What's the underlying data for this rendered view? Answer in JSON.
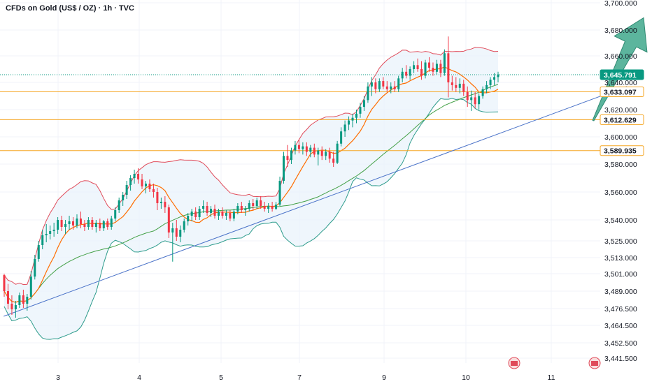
{
  "chart_data": {
    "type": "candlestick",
    "title": "CFDs on Gold (US$ / OZ) · 1h · TVC",
    "y_ticks": [
      "3,700.000",
      "3,680.000",
      "3,660.000",
      "3,640.000",
      "3,620.000",
      "3,600.000",
      "3,580.000",
      "3,560.000",
      "3,540.000",
      "3,525.000",
      "3,513.000",
      "3,501.000",
      "3,489.000",
      "3,476.500",
      "3,464.500",
      "3,452.500",
      "3,441.500"
    ],
    "x_ticks": [
      "3",
      "4",
      "5",
      "7",
      "9",
      "10",
      "11"
    ],
    "ylim": [
      3441.5,
      3700
    ],
    "price_tags": [
      {
        "label": "3,645.791",
        "value": 3645.8,
        "bg": "#089981",
        "fg": "#ffffff",
        "border": "#089981",
        "line": "dotted"
      },
      {
        "label": "3,633.097",
        "value": 3633.1,
        "bg": "#ffffff",
        "fg": "#131722",
        "border": "#f5a623",
        "line": "solid"
      },
      {
        "label": "3,612.629",
        "value": 3612.6,
        "bg": "#ffffff",
        "fg": "#131722",
        "border": "#f5a623",
        "line": "solid"
      },
      {
        "label": "3,589.935",
        "value": 3589.9,
        "bg": "#ffffff",
        "fg": "#131722",
        "border": "#f5a623",
        "line": "solid"
      }
    ],
    "colors": {
      "up": "#089981",
      "down": "#f23645",
      "bb_upper": "#e04b5a",
      "bb_lower": "#2e9c8c",
      "bb_fill": "#e8f2fb",
      "ma_fast": "#ff6d00",
      "ma_slow": "#43a047",
      "trendline": "#4a72c8",
      "arrow": "#3fa88c",
      "level": "#f5a623"
    },
    "trendline": {
      "from": {
        "day": 2.33,
        "value": 3471
      },
      "to": {
        "day": 11.9,
        "value": 3637
      }
    },
    "forecast_arrow": {
      "from": {
        "day": 11.5,
        "value": 3612
      },
      "to": {
        "day": 12.1,
        "value": 3689
      }
    },
    "candles": [
      {
        "o": 3500,
        "h": 3501,
        "l": 3485,
        "c": 3489
      },
      {
        "o": 3489,
        "h": 3494,
        "l": 3476,
        "c": 3480
      },
      {
        "o": 3480,
        "h": 3486,
        "l": 3472,
        "c": 3476
      },
      {
        "o": 3476,
        "h": 3482,
        "l": 3470,
        "c": 3479
      },
      {
        "o": 3479,
        "h": 3488,
        "l": 3477,
        "c": 3486
      },
      {
        "o": 3486,
        "h": 3490,
        "l": 3477,
        "c": 3480
      },
      {
        "o": 3480,
        "h": 3487,
        "l": 3475,
        "c": 3485
      },
      {
        "o": 3485,
        "h": 3503,
        "l": 3483,
        "c": 3499
      },
      {
        "o": 3499,
        "h": 3515,
        "l": 3497,
        "c": 3512
      },
      {
        "o": 3512,
        "h": 3525,
        "l": 3510,
        "c": 3522
      },
      {
        "o": 3522,
        "h": 3533,
        "l": 3519,
        "c": 3529
      },
      {
        "o": 3529,
        "h": 3537,
        "l": 3524,
        "c": 3530
      },
      {
        "o": 3530,
        "h": 3536,
        "l": 3526,
        "c": 3532
      },
      {
        "o": 3532,
        "h": 3538,
        "l": 3528,
        "c": 3533
      },
      {
        "o": 3533,
        "h": 3542,
        "l": 3530,
        "c": 3540
      },
      {
        "o": 3540,
        "h": 3543,
        "l": 3532,
        "c": 3535
      },
      {
        "o": 3535,
        "h": 3540,
        "l": 3530,
        "c": 3537
      },
      {
        "o": 3537,
        "h": 3543,
        "l": 3533,
        "c": 3539
      },
      {
        "o": 3539,
        "h": 3542,
        "l": 3533,
        "c": 3536
      },
      {
        "o": 3536,
        "h": 3544,
        "l": 3534,
        "c": 3541
      },
      {
        "o": 3541,
        "h": 3546,
        "l": 3534,
        "c": 3537
      },
      {
        "o": 3537,
        "h": 3540,
        "l": 3532,
        "c": 3535
      },
      {
        "o": 3535,
        "h": 3542,
        "l": 3533,
        "c": 3540
      },
      {
        "o": 3540,
        "h": 3542,
        "l": 3533,
        "c": 3535
      },
      {
        "o": 3535,
        "h": 3540,
        "l": 3531,
        "c": 3538
      },
      {
        "o": 3538,
        "h": 3541,
        "l": 3532,
        "c": 3534
      },
      {
        "o": 3534,
        "h": 3540,
        "l": 3532,
        "c": 3539
      },
      {
        "o": 3539,
        "h": 3541,
        "l": 3533,
        "c": 3535
      },
      {
        "o": 3535,
        "h": 3543,
        "l": 3533,
        "c": 3541
      },
      {
        "o": 3541,
        "h": 3549,
        "l": 3539,
        "c": 3547
      },
      {
        "o": 3547,
        "h": 3556,
        "l": 3545,
        "c": 3554
      },
      {
        "o": 3554,
        "h": 3560,
        "l": 3550,
        "c": 3558
      },
      {
        "o": 3558,
        "h": 3568,
        "l": 3555,
        "c": 3565
      },
      {
        "o": 3565,
        "h": 3572,
        "l": 3561,
        "c": 3570
      },
      {
        "o": 3570,
        "h": 3576,
        "l": 3566,
        "c": 3573
      },
      {
        "o": 3573,
        "h": 3577,
        "l": 3566,
        "c": 3569
      },
      {
        "o": 3569,
        "h": 3573,
        "l": 3562,
        "c": 3564
      },
      {
        "o": 3564,
        "h": 3568,
        "l": 3559,
        "c": 3566
      },
      {
        "o": 3566,
        "h": 3569,
        "l": 3560,
        "c": 3562
      },
      {
        "o": 3562,
        "h": 3566,
        "l": 3556,
        "c": 3560
      },
      {
        "o": 3560,
        "h": 3563,
        "l": 3547,
        "c": 3552
      },
      {
        "o": 3552,
        "h": 3556,
        "l": 3548,
        "c": 3553
      },
      {
        "o": 3553,
        "h": 3557,
        "l": 3545,
        "c": 3549
      },
      {
        "o": 3549,
        "h": 3551,
        "l": 3527,
        "c": 3531
      },
      {
        "o": 3531,
        "h": 3538,
        "l": 3510,
        "c": 3534
      },
      {
        "o": 3534,
        "h": 3540,
        "l": 3525,
        "c": 3528
      },
      {
        "o": 3528,
        "h": 3536,
        "l": 3524,
        "c": 3533
      },
      {
        "o": 3533,
        "h": 3541,
        "l": 3531,
        "c": 3539
      },
      {
        "o": 3539,
        "h": 3545,
        "l": 3536,
        "c": 3543
      },
      {
        "o": 3543,
        "h": 3548,
        "l": 3539,
        "c": 3546
      },
      {
        "o": 3546,
        "h": 3549,
        "l": 3540,
        "c": 3542
      },
      {
        "o": 3542,
        "h": 3550,
        "l": 3540,
        "c": 3548
      },
      {
        "o": 3548,
        "h": 3554,
        "l": 3545,
        "c": 3550
      },
      {
        "o": 3550,
        "h": 3553,
        "l": 3543,
        "c": 3545
      },
      {
        "o": 3545,
        "h": 3550,
        "l": 3542,
        "c": 3548
      },
      {
        "o": 3548,
        "h": 3551,
        "l": 3541,
        "c": 3543
      },
      {
        "o": 3543,
        "h": 3548,
        "l": 3540,
        "c": 3546
      },
      {
        "o": 3546,
        "h": 3549,
        "l": 3541,
        "c": 3543
      },
      {
        "o": 3543,
        "h": 3547,
        "l": 3540,
        "c": 3545
      },
      {
        "o": 3545,
        "h": 3547,
        "l": 3539,
        "c": 3541
      },
      {
        "o": 3541,
        "h": 3548,
        "l": 3539,
        "c": 3546
      },
      {
        "o": 3546,
        "h": 3552,
        "l": 3544,
        "c": 3550
      },
      {
        "o": 3550,
        "h": 3553,
        "l": 3545,
        "c": 3547
      },
      {
        "o": 3547,
        "h": 3550,
        "l": 3543,
        "c": 3548
      },
      {
        "o": 3548,
        "h": 3554,
        "l": 3546,
        "c": 3552
      },
      {
        "o": 3552,
        "h": 3555,
        "l": 3547,
        "c": 3550
      },
      {
        "o": 3550,
        "h": 3556,
        "l": 3548,
        "c": 3554
      },
      {
        "o": 3554,
        "h": 3557,
        "l": 3548,
        "c": 3550
      },
      {
        "o": 3550,
        "h": 3553,
        "l": 3546,
        "c": 3548
      },
      {
        "o": 3548,
        "h": 3552,
        "l": 3545,
        "c": 3550
      },
      {
        "o": 3550,
        "h": 3553,
        "l": 3546,
        "c": 3548
      },
      {
        "o": 3548,
        "h": 3553,
        "l": 3547,
        "c": 3551
      },
      {
        "o": 3551,
        "h": 3571,
        "l": 3550,
        "c": 3568
      },
      {
        "o": 3568,
        "h": 3589,
        "l": 3566,
        "c": 3586
      },
      {
        "o": 3586,
        "h": 3594,
        "l": 3578,
        "c": 3583
      },
      {
        "o": 3583,
        "h": 3592,
        "l": 3580,
        "c": 3590
      },
      {
        "o": 3590,
        "h": 3597,
        "l": 3587,
        "c": 3594
      },
      {
        "o": 3594,
        "h": 3598,
        "l": 3588,
        "c": 3591
      },
      {
        "o": 3591,
        "h": 3596,
        "l": 3587,
        "c": 3593
      },
      {
        "o": 3593,
        "h": 3596,
        "l": 3586,
        "c": 3589
      },
      {
        "o": 3589,
        "h": 3594,
        "l": 3585,
        "c": 3592
      },
      {
        "o": 3592,
        "h": 3595,
        "l": 3585,
        "c": 3587
      },
      {
        "o": 3587,
        "h": 3592,
        "l": 3579,
        "c": 3590
      },
      {
        "o": 3590,
        "h": 3593,
        "l": 3583,
        "c": 3586
      },
      {
        "o": 3586,
        "h": 3591,
        "l": 3583,
        "c": 3589
      },
      {
        "o": 3589,
        "h": 3592,
        "l": 3581,
        "c": 3584
      },
      {
        "o": 3584,
        "h": 3589,
        "l": 3578,
        "c": 3581
      },
      {
        "o": 3581,
        "h": 3597,
        "l": 3580,
        "c": 3595
      },
      {
        "o": 3595,
        "h": 3607,
        "l": 3593,
        "c": 3604
      },
      {
        "o": 3604,
        "h": 3612,
        "l": 3600,
        "c": 3609
      },
      {
        "o": 3609,
        "h": 3615,
        "l": 3605,
        "c": 3612
      },
      {
        "o": 3612,
        "h": 3617,
        "l": 3607,
        "c": 3614
      },
      {
        "o": 3614,
        "h": 3620,
        "l": 3610,
        "c": 3617
      },
      {
        "o": 3617,
        "h": 3625,
        "l": 3614,
        "c": 3622
      },
      {
        "o": 3622,
        "h": 3630,
        "l": 3619,
        "c": 3627
      },
      {
        "o": 3627,
        "h": 3640,
        "l": 3625,
        "c": 3637
      },
      {
        "o": 3637,
        "h": 3644,
        "l": 3630,
        "c": 3640
      },
      {
        "o": 3640,
        "h": 3643,
        "l": 3632,
        "c": 3635
      },
      {
        "o": 3635,
        "h": 3643,
        "l": 3633,
        "c": 3641
      },
      {
        "o": 3641,
        "h": 3644,
        "l": 3635,
        "c": 3637
      },
      {
        "o": 3637,
        "h": 3641,
        "l": 3633,
        "c": 3635
      },
      {
        "o": 3635,
        "h": 3640,
        "l": 3632,
        "c": 3637
      },
      {
        "o": 3637,
        "h": 3641,
        "l": 3633,
        "c": 3635
      },
      {
        "o": 3635,
        "h": 3645,
        "l": 3633,
        "c": 3643
      },
      {
        "o": 3643,
        "h": 3651,
        "l": 3640,
        "c": 3648
      },
      {
        "o": 3648,
        "h": 3653,
        "l": 3643,
        "c": 3645
      },
      {
        "o": 3645,
        "h": 3652,
        "l": 3642,
        "c": 3650
      },
      {
        "o": 3650,
        "h": 3656,
        "l": 3647,
        "c": 3653
      },
      {
        "o": 3653,
        "h": 3658,
        "l": 3648,
        "c": 3650
      },
      {
        "o": 3650,
        "h": 3656,
        "l": 3642,
        "c": 3645
      },
      {
        "o": 3645,
        "h": 3657,
        "l": 3643,
        "c": 3655
      },
      {
        "o": 3655,
        "h": 3659,
        "l": 3648,
        "c": 3651
      },
      {
        "o": 3651,
        "h": 3655,
        "l": 3645,
        "c": 3648
      },
      {
        "o": 3648,
        "h": 3657,
        "l": 3646,
        "c": 3654
      },
      {
        "o": 3654,
        "h": 3657,
        "l": 3644,
        "c": 3647
      },
      {
        "o": 3647,
        "h": 3665,
        "l": 3645,
        "c": 3662
      },
      {
        "o": 3662,
        "h": 3675,
        "l": 3629,
        "c": 3640
      },
      {
        "o": 3640,
        "h": 3645,
        "l": 3634,
        "c": 3638
      },
      {
        "o": 3638,
        "h": 3644,
        "l": 3633,
        "c": 3636
      },
      {
        "o": 3636,
        "h": 3643,
        "l": 3632,
        "c": 3639
      },
      {
        "o": 3639,
        "h": 3642,
        "l": 3630,
        "c": 3633
      },
      {
        "o": 3633,
        "h": 3637,
        "l": 3622,
        "c": 3627
      },
      {
        "o": 3627,
        "h": 3634,
        "l": 3619,
        "c": 3629
      },
      {
        "o": 3629,
        "h": 3633,
        "l": 3621,
        "c": 3624
      },
      {
        "o": 3624,
        "h": 3632,
        "l": 3620,
        "c": 3630
      },
      {
        "o": 3630,
        "h": 3637,
        "l": 3628,
        "c": 3635
      },
      {
        "o": 3635,
        "h": 3641,
        "l": 3632,
        "c": 3638
      },
      {
        "o": 3638,
        "h": 3644,
        "l": 3635,
        "c": 3642
      },
      {
        "o": 3642,
        "h": 3647,
        "l": 3638,
        "c": 3644
      },
      {
        "o": 3644,
        "h": 3648,
        "l": 3640,
        "c": 3646
      }
    ]
  }
}
